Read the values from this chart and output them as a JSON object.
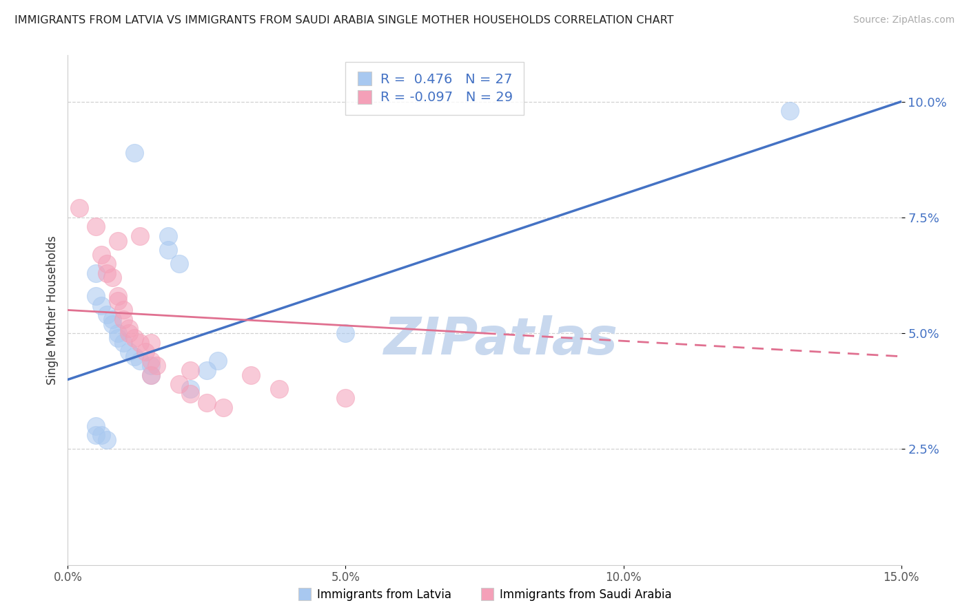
{
  "title": "IMMIGRANTS FROM LATVIA VS IMMIGRANTS FROM SAUDI ARABIA SINGLE MOTHER HOUSEHOLDS CORRELATION CHART",
  "source": "Source: ZipAtlas.com",
  "ylabel": "Single Mother Households",
  "xlabel_latvia": "Immigrants from Latvia",
  "xlabel_saudi": "Immigrants from Saudi Arabia",
  "r_latvia": 0.476,
  "n_latvia": 27,
  "r_saudi": -0.097,
  "n_saudi": 29,
  "xlim": [
    0.0,
    0.15
  ],
  "ylim": [
    0.0,
    0.11
  ],
  "yticks": [
    0.025,
    0.05,
    0.075,
    0.1
  ],
  "ytick_labels": [
    "2.5%",
    "5.0%",
    "7.5%",
    "10.0%"
  ],
  "xticks": [
    0.0,
    0.05,
    0.1,
    0.15
  ],
  "xtick_labels": [
    "0.0%",
    "5.0%",
    "10.0%",
    "15.0%"
  ],
  "color_latvia": "#a8c8f0",
  "color_saudi": "#f4a0b8",
  "line_color_latvia": "#4472c4",
  "line_color_saudi": "#e07090",
  "latvia_x": [
    0.012,
    0.018,
    0.018,
    0.02,
    0.005,
    0.005,
    0.006,
    0.007,
    0.008,
    0.008,
    0.009,
    0.009,
    0.01,
    0.011,
    0.012,
    0.013,
    0.015,
    0.015,
    0.005,
    0.005,
    0.006,
    0.007,
    0.022,
    0.027,
    0.05,
    0.13,
    0.025
  ],
  "latvia_y": [
    0.089,
    0.071,
    0.068,
    0.065,
    0.063,
    0.058,
    0.056,
    0.054,
    0.053,
    0.052,
    0.05,
    0.049,
    0.048,
    0.046,
    0.045,
    0.044,
    0.043,
    0.041,
    0.03,
    0.028,
    0.028,
    0.027,
    0.038,
    0.044,
    0.05,
    0.098,
    0.042
  ],
  "saudi_x": [
    0.002,
    0.005,
    0.009,
    0.013,
    0.006,
    0.007,
    0.007,
    0.008,
    0.009,
    0.009,
    0.01,
    0.01,
    0.011,
    0.011,
    0.012,
    0.013,
    0.014,
    0.015,
    0.015,
    0.016,
    0.015,
    0.02,
    0.022,
    0.022,
    0.025,
    0.028,
    0.033,
    0.038,
    0.05
  ],
  "saudi_y": [
    0.077,
    0.073,
    0.07,
    0.071,
    0.067,
    0.065,
    0.063,
    0.062,
    0.058,
    0.057,
    0.055,
    0.053,
    0.051,
    0.05,
    0.049,
    0.048,
    0.046,
    0.044,
    0.048,
    0.043,
    0.041,
    0.039,
    0.037,
    0.042,
    0.035,
    0.034,
    0.041,
    0.038,
    0.036
  ],
  "line_latvia_x0": 0.0,
  "line_latvia_y0": 0.04,
  "line_latvia_x1": 0.15,
  "line_latvia_y1": 0.1,
  "line_saudi_x0": 0.0,
  "line_saudi_y0": 0.055,
  "line_saudi_x1": 0.15,
  "line_saudi_y1": 0.045,
  "watermark": "ZIPatlas",
  "watermark_color": "#c8d8ee",
  "background_color": "#ffffff",
  "grid_color": "#cccccc"
}
